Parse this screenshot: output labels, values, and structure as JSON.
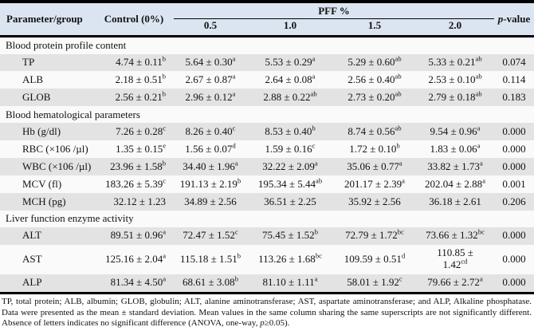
{
  "header": {
    "parameter": "Parameter/group",
    "control": "Control (0%)",
    "pff": "PFF %",
    "pff_levels": [
      "0.5",
      "1.0",
      "1.5",
      "2.0"
    ],
    "pvalue_italic": "p",
    "pvalue_rest": "-value"
  },
  "sections": [
    {
      "title": "Blood protein profile content",
      "rows": [
        {
          "param": "TP",
          "cells": [
            {
              "v": "4.74 ± 0.11",
              "s": "b"
            },
            {
              "v": "5.64 ± 0.30",
              "s": "a"
            },
            {
              "v": "5.53 ± 0.29",
              "s": "a"
            },
            {
              "v": "5.29 ± 0.60",
              "s": "ab"
            },
            {
              "v": "5.33 ± 0.21",
              "s": "ab"
            }
          ],
          "p": "0.074"
        },
        {
          "param": "ALB",
          "cells": [
            {
              "v": "2.18 ± 0.51",
              "s": "b"
            },
            {
              "v": "2.67 ± 0.87",
              "s": "a"
            },
            {
              "v": "2.64 ± 0.08",
              "s": "a"
            },
            {
              "v": "2.56 ± 0.40",
              "s": "ab"
            },
            {
              "v": "2.53 ± 0.10",
              "s": "ab"
            }
          ],
          "p": "0.114"
        },
        {
          "param": "GLOB",
          "cells": [
            {
              "v": "2.56 ± 0.21",
              "s": "b"
            },
            {
              "v": "2.96 ± 0.12",
              "s": "a"
            },
            {
              "v": "2.88 ± 0.22",
              "s": "ab"
            },
            {
              "v": "2.73 ± 0.20",
              "s": "ab"
            },
            {
              "v": "2.79 ± 0.18",
              "s": "ab"
            }
          ],
          "p": "0.183"
        }
      ]
    },
    {
      "title": "Blood hematological parameters",
      "rows": [
        {
          "param": "Hb (g/dl)",
          "cells": [
            {
              "v": "7.26 ± 0.28",
              "s": "c"
            },
            {
              "v": "8.26 ± 0.40",
              "s": "c"
            },
            {
              "v": "8.53 ± 0.40",
              "s": "b"
            },
            {
              "v": "8.74 ± 0.56",
              "s": "ab"
            },
            {
              "v": "9.54 ± 0.96",
              "s": "a"
            }
          ],
          "p": "0.000"
        },
        {
          "param": "RBC (×106 /µl)",
          "cells": [
            {
              "v": "1.35 ± 0.15",
              "s": "e"
            },
            {
              "v": "1.56 ± 0.07",
              "s": "d"
            },
            {
              "v": "1.59 ± 0.16",
              "s": "c"
            },
            {
              "v": "1.72 ± 0.10",
              "s": "b"
            },
            {
              "v": "1.83 ± 0.06",
              "s": "a"
            }
          ],
          "p": "0.000"
        },
        {
          "param": "WBC (×106 /µl)",
          "cells": [
            {
              "v": "23.96 ± 1.58",
              "s": "b"
            },
            {
              "v": "34.40 ± 1.96",
              "s": "a"
            },
            {
              "v": "32.22 ± 2.09",
              "s": "a"
            },
            {
              "v": "35.06 ± 0.77",
              "s": "a"
            },
            {
              "v": "33.82 ± 1.73",
              "s": "a"
            }
          ],
          "p": "0.000"
        },
        {
          "param": "MCV (fl)",
          "cells": [
            {
              "v": "183.26 ± 5.39",
              "s": "c"
            },
            {
              "v": "191.13 ± 2.19",
              "s": "b"
            },
            {
              "v": "195.34 ± 5.44",
              "s": "ab"
            },
            {
              "v": "201.17 ± 2.39",
              "s": "a"
            },
            {
              "v": "202.04 ± 2.88",
              "s": "a"
            }
          ],
          "p": "0.001"
        },
        {
          "param": "MCH (pg)",
          "cells": [
            {
              "v": "32.12 ± 1.23",
              "s": ""
            },
            {
              "v": "34.89 ± 2.56",
              "s": ""
            },
            {
              "v": "36.51 ± 2.25",
              "s": ""
            },
            {
              "v": "35.92 ± 2.56",
              "s": ""
            },
            {
              "v": "36.18 ± 2.61",
              "s": ""
            }
          ],
          "p": "0.206"
        }
      ]
    },
    {
      "title": "Liver function enzyme activity",
      "rows": [
        {
          "param": "ALT",
          "cells": [
            {
              "v": "89.51 ± 0.96",
              "s": "a"
            },
            {
              "v": "72.47 ± 1.52",
              "s": "c"
            },
            {
              "v": "75.45 ± 1.52",
              "s": "b"
            },
            {
              "v": "72.79 ± 1.72",
              "s": "bc"
            },
            {
              "v": "73.66 ± 1.32",
              "s": "bc"
            }
          ],
          "p": "0.000"
        },
        {
          "param": "AST",
          "cells": [
            {
              "v": "125.16 ± 2.04",
              "s": "a"
            },
            {
              "v": "115.18 ± 1.51",
              "s": "b"
            },
            {
              "v": "113.26 ± 1.68",
              "s": "bc"
            },
            {
              "v": "109.59 ± 0.51",
              "s": "d"
            },
            {
              "v": "110.85 ±\n1.42",
              "s": "cd"
            }
          ],
          "p": "0.000"
        },
        {
          "param": "ALP",
          "cells": [
            {
              "v": "81.34 ± 4.50",
              "s": "a"
            },
            {
              "v": "68.61 ± 3.08",
              "s": "b"
            },
            {
              "v": "81.10 ± 1.11",
              "s": "a"
            },
            {
              "v": "58.01 ± 1.92",
              "s": "c"
            },
            {
              "v": "79.66 ± 2.72",
              "s": "a"
            }
          ],
          "p": "0.000"
        }
      ]
    }
  ],
  "footnote": {
    "main": "TP, total protein; ALB, albumin; GLOB, globulin; ALT, alanine aminotransferase; AST, aspartate aminotransferase; and ALP, Alkaline phosphatase. Data were presented as the mean ± standard deviation. Mean values in the same column sharing the same superscripts are not significantly different. Absence of letters indicates no significant difference (ANOVA, one-way, ",
    "p_italic": "p",
    "tail": "≥0.05)."
  },
  "colors": {
    "header_bg": "#dbe5f1",
    "stripe_bg": "#e3e3e3",
    "plain_bg": "#fafafa"
  }
}
